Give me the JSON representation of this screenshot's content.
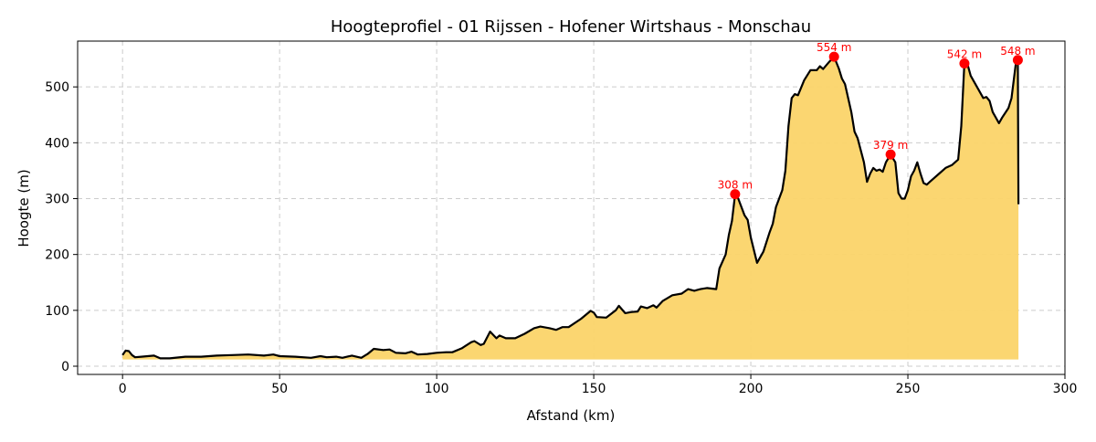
{
  "chart_data": {
    "type": "area",
    "title": "Hoogteprofiel - 01 Rijssen - Hofener Wirtshaus - Monschau",
    "xlabel": "Afstand (km)",
    "ylabel": "Hoogte (m)",
    "xlim": [
      -14.3,
      300
    ],
    "ylim": [
      -14.7,
      582
    ],
    "xticks": [
      0,
      50,
      100,
      150,
      200,
      250,
      300
    ],
    "yticks": [
      0,
      100,
      200,
      300,
      400,
      500
    ],
    "grid": true,
    "fill_color": "#fbd469",
    "line_color": "#000000",
    "marker_color": "#ff0000",
    "fill_base": 12,
    "x": [
      0,
      1,
      2,
      3,
      4,
      6,
      8,
      10,
      12,
      15,
      20,
      25,
      30,
      35,
      40,
      45,
      48,
      50,
      55,
      60,
      63,
      65,
      68,
      70,
      73,
      76,
      78,
      80,
      83,
      85,
      87,
      90,
      92,
      94,
      97,
      100,
      103,
      105,
      108,
      111,
      112,
      114,
      115,
      117,
      119,
      120,
      122,
      125,
      128,
      131,
      133,
      136,
      138,
      140,
      142,
      146,
      149,
      150,
      151,
      154,
      157,
      158,
      160,
      162,
      164,
      165,
      167,
      169,
      170,
      172,
      175,
      178,
      180,
      182,
      184,
      186,
      189,
      190,
      192,
      193,
      194,
      195,
      196,
      198,
      199,
      200,
      202,
      204,
      206,
      207,
      208,
      210,
      211,
      212,
      213,
      214,
      215,
      217,
      219,
      221,
      222,
      223,
      225,
      226.5,
      228,
      229,
      230,
      232,
      233,
      234,
      236,
      237,
      238,
      239,
      240,
      241,
      242,
      243,
      244.5,
      246,
      247,
      248,
      249,
      250,
      251,
      252,
      253,
      254,
      255,
      256,
      257,
      258,
      260,
      262,
      264,
      266,
      267,
      268,
      269,
      270,
      272,
      274,
      275,
      276,
      277,
      279,
      280,
      282,
      283,
      284.5,
      285,
      285.2
    ],
    "y": [
      20,
      28,
      27,
      20,
      16,
      17,
      18,
      19,
      14,
      14,
      17,
      17,
      19,
      20,
      21,
      19,
      21,
      18,
      17,
      15,
      18,
      16,
      17,
      15,
      19,
      15,
      22,
      31,
      29,
      30,
      24,
      23,
      26,
      21,
      22,
      24,
      25,
      25,
      32,
      43,
      45,
      38,
      40,
      62,
      50,
      55,
      50,
      50,
      58,
      68,
      71,
      68,
      65,
      70,
      70,
      85,
      99,
      96,
      88,
      87,
      100,
      108,
      95,
      97,
      98,
      107,
      104,
      109,
      105,
      117,
      127,
      130,
      138,
      135,
      138,
      140,
      138,
      175,
      200,
      235,
      260,
      308,
      300,
      270,
      262,
      230,
      185,
      205,
      240,
      255,
      285,
      315,
      350,
      430,
      480,
      487,
      485,
      512,
      530,
      530,
      537,
      532,
      545,
      554,
      533,
      515,
      505,
      455,
      420,
      408,
      365,
      330,
      345,
      355,
      350,
      352,
      348,
      365,
      379,
      365,
      310,
      300,
      300,
      315,
      340,
      350,
      365,
      345,
      328,
      325,
      330,
      335,
      345,
      355,
      360,
      370,
      430,
      542,
      540,
      520,
      500,
      480,
      482,
      475,
      455,
      435,
      445,
      462,
      480,
      548,
      548,
      290
    ],
    "annotations": [
      {
        "x": 195,
        "y": 308,
        "label": "308 m"
      },
      {
        "x": 226.5,
        "y": 554,
        "label": "554 m"
      },
      {
        "x": 244.5,
        "y": 379,
        "label": "379 m"
      },
      {
        "x": 268,
        "y": 542,
        "label": "542 m"
      },
      {
        "x": 285,
        "y": 548,
        "label": "548 m"
      }
    ]
  }
}
